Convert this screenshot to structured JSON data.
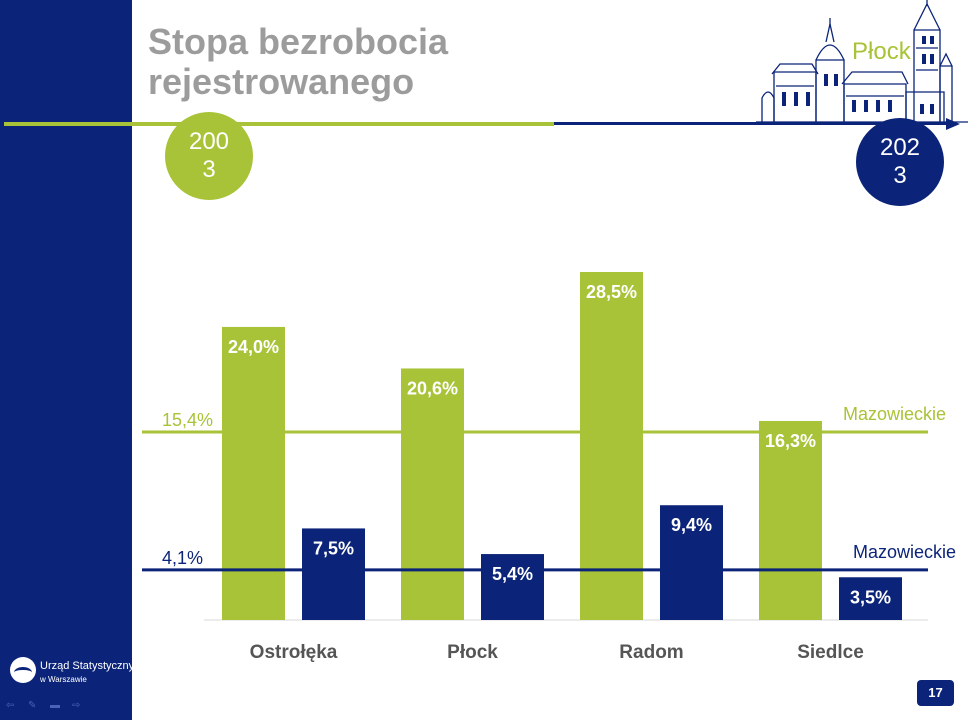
{
  "slide": {
    "title_line1": "Stopa bezrobocia",
    "title_line2": "rejestrowanego",
    "city": "Płock",
    "year_left": "200\n3",
    "year_right": "202\n3",
    "page_number": "17"
  },
  "logo": {
    "name": "Urząd Statystyczny",
    "sub": "w Warszawie"
  },
  "colors": {
    "green": "#a8c337",
    "navy": "#0b2479",
    "title_gray": "#9c9c9c"
  },
  "chart_data": {
    "type": "bar",
    "categories": [
      "Ostrołęka",
      "Płock",
      "Radom",
      "Siedlce"
    ],
    "series": [
      {
        "year": "2003",
        "color": "#a8c337",
        "values": [
          24.0,
          20.6,
          28.5,
          16.3
        ],
        "labels": [
          "24,0%",
          "20,6%",
          "28,5%",
          "16,3%"
        ]
      },
      {
        "year": "2023",
        "color": "#0b2479",
        "values": [
          7.5,
          5.4,
          9.4,
          3.5
        ],
        "labels": [
          "7,5%",
          "5,4%",
          "9,4%",
          "3,5%"
        ]
      }
    ],
    "reference_lines": [
      {
        "name": "Mazowieckie",
        "value": 15.4,
        "label": "15,4%",
        "color": "#a8c337"
      },
      {
        "name": "Mazowieckie",
        "value": 4.1,
        "label": "4,1%",
        "color": "#0b2479"
      }
    ],
    "ylim": [
      0,
      28.5
    ]
  }
}
